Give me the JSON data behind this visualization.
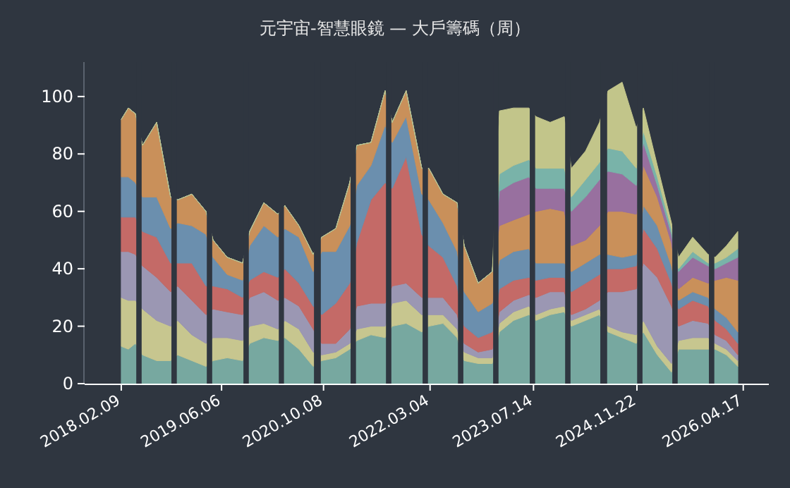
{
  "chart_data": {
    "type": "area",
    "stacked": true,
    "title": "元宇宙-智慧眼鏡 — 大戶籌碼（周）",
    "x": [
      "2018-02-09",
      "2018-03-15",
      "2018-04-18",
      "2018-05-22",
      "2018-07-29",
      "2018-10-04",
      "2018-11-07",
      "2019-01-14",
      "2019-03-23",
      "2019-04-26",
      "2019-07-03",
      "2019-09-15",
      "2019-10-19",
      "2019-12-26",
      "2020-03-03",
      "2020-04-05",
      "2020-06-12",
      "2020-08-19",
      "2020-09-29",
      "2020-12-06",
      "2021-02-11",
      "2021-03-17",
      "2021-05-24",
      "2021-07-31",
      "2021-09-03",
      "2021-11-09",
      "2022-01-23",
      "2022-02-26",
      "2022-05-05",
      "2022-07-12",
      "2022-08-15",
      "2022-10-21",
      "2022-12-28",
      "2023-01-31",
      "2023-04-09",
      "2023-06-22",
      "2023-07-26",
      "2023-10-02",
      "2023-12-09",
      "2024-01-12",
      "2024-03-20",
      "2024-05-26",
      "2024-07-06",
      "2024-09-12",
      "2024-11-19",
      "2024-12-23",
      "2025-02-28",
      "2025-05-07",
      "2025-06-10",
      "2025-08-17",
      "2025-10-30",
      "2025-12-03",
      "2026-01-26",
      "2026-03-22"
    ],
    "series": [
      {
        "color": "#77a8a0",
        "values": [
          13,
          12,
          14,
          10,
          8,
          8,
          10,
          8,
          6,
          8,
          9,
          8,
          14,
          16,
          15,
          16,
          12,
          6,
          8,
          9,
          12,
          15,
          17,
          16,
          20,
          21,
          18,
          20,
          21,
          16,
          8,
          7,
          7,
          18,
          22,
          24,
          22,
          24,
          25,
          20,
          22,
          24,
          18,
          16,
          14,
          18,
          10,
          4,
          12,
          12,
          12,
          12,
          10,
          6
        ]
      },
      {
        "color": "#c7c68f",
        "values": [
          17,
          17,
          15,
          16,
          14,
          12,
          12,
          9,
          8,
          8,
          7,
          7,
          6,
          5,
          4,
          6,
          7,
          5,
          2,
          2,
          2,
          4,
          3,
          4,
          8,
          8,
          6,
          4,
          3,
          3,
          3,
          2,
          2,
          3,
          3,
          3,
          2,
          2,
          2,
          2,
          2,
          2,
          2,
          2,
          3,
          4,
          3,
          3,
          3,
          4,
          4,
          2,
          2,
          2
        ]
      },
      {
        "color": "#9b97b3",
        "values": [
          16,
          17,
          16,
          15,
          15,
          12,
          12,
          12,
          10,
          10,
          9,
          9,
          10,
          11,
          10,
          8,
          8,
          8,
          4,
          3,
          5,
          8,
          8,
          8,
          6,
          6,
          6,
          6,
          6,
          5,
          3,
          2,
          3,
          4,
          4,
          4,
          6,
          6,
          5,
          2,
          2,
          3,
          12,
          14,
          16,
          20,
          24,
          20,
          5,
          6,
          5,
          3,
          3,
          2
        ]
      },
      {
        "color": "#c46a67",
        "values": [
          12,
          12,
          13,
          12,
          14,
          10,
          8,
          13,
          10,
          8,
          8,
          6,
          6,
          7,
          8,
          10,
          8,
          8,
          10,
          14,
          16,
          22,
          36,
          42,
          34,
          44,
          22,
          18,
          14,
          10,
          6,
          5,
          6,
          8,
          7,
          6,
          6,
          5,
          5,
          8,
          9,
          9,
          8,
          8,
          8,
          12,
          10,
          8,
          6,
          7,
          6,
          5,
          4,
          4
        ]
      },
      {
        "color": "#6b8fae",
        "values": [
          14,
          14,
          12,
          12,
          14,
          12,
          14,
          13,
          18,
          10,
          5,
          6,
          12,
          16,
          14,
          14,
          16,
          12,
          22,
          18,
          20,
          20,
          12,
          20,
          16,
          14,
          14,
          16,
          12,
          12,
          12,
          9,
          10,
          10,
          10,
          10,
          6,
          5,
          5,
          7,
          7,
          7,
          5,
          4,
          4,
          8,
          8,
          6,
          3,
          3,
          3,
          4,
          4,
          4
        ]
      },
      {
        "color": "#c9905a",
        "values": [
          20,
          24,
          24,
          18,
          26,
          11,
          8,
          11,
          8,
          6,
          6,
          6,
          5,
          8,
          8,
          8,
          4,
          6,
          5,
          8,
          15,
          14,
          8,
          12,
          7,
          9,
          9,
          11,
          10,
          17,
          16,
          10,
          11,
          12,
          11,
          12,
          18,
          19,
          18,
          9,
          8,
          10,
          15,
          16,
          14,
          14,
          10,
          8,
          4,
          5,
          5,
          10,
          14,
          18
        ]
      },
      {
        "color": "#98709f",
        "values": [
          0,
          0,
          0,
          0,
          0,
          0,
          0,
          0,
          0,
          0,
          0,
          0,
          0,
          0,
          0,
          0,
          0,
          0,
          0,
          0,
          0,
          0,
          0,
          0,
          0,
          0,
          0,
          0,
          0,
          0,
          0,
          0,
          0,
          12,
          13,
          13,
          8,
          7,
          8,
          12,
          15,
          16,
          14,
          13,
          10,
          8,
          4,
          3,
          6,
          7,
          6,
          4,
          5,
          8
        ]
      },
      {
        "color": "#79b3a9",
        "values": [
          0,
          0,
          0,
          0,
          0,
          0,
          0,
          0,
          0,
          0,
          0,
          0,
          0,
          0,
          0,
          0,
          0,
          0,
          0,
          0,
          0,
          0,
          0,
          0,
          0,
          0,
          0,
          0,
          0,
          0,
          0,
          0,
          0,
          6,
          6,
          6,
          7,
          7,
          7,
          5,
          6,
          6,
          8,
          8,
          6,
          4,
          3,
          2,
          1,
          2,
          1,
          2,
          2,
          3
        ]
      },
      {
        "color": "#c2c58a",
        "values": [
          0,
          0,
          0,
          0,
          0,
          0,
          0,
          0,
          0,
          0,
          0,
          0,
          0,
          0,
          0,
          0,
          0,
          0,
          0,
          0,
          0,
          0,
          0,
          0,
          0,
          0,
          0,
          0,
          0,
          0,
          0,
          0,
          0,
          22,
          20,
          18,
          18,
          16,
          18,
          10,
          10,
          14,
          20,
          24,
          14,
          8,
          4,
          2,
          4,
          5,
          3,
          2,
          4,
          6
        ]
      }
    ],
    "bands": [
      {
        "axis": "x",
        "from": "2018-04-18",
        "to": "2018-05-22",
        "color": "#2f3640"
      },
      {
        "axis": "x",
        "from": "2018-10-04",
        "to": "2018-11-07",
        "color": "#2f3640"
      },
      {
        "axis": "x",
        "from": "2019-03-23",
        "to": "2019-04-26",
        "color": "#2f3640"
      },
      {
        "axis": "x",
        "from": "2019-09-15",
        "to": "2019-10-19",
        "color": "#2f3640"
      },
      {
        "axis": "x",
        "from": "2020-03-03",
        "to": "2020-04-05",
        "color": "#2f3640"
      },
      {
        "axis": "x",
        "from": "2020-08-19",
        "to": "2020-09-29",
        "color": "#2f3640"
      },
      {
        "axis": "x",
        "from": "2021-02-11",
        "to": "2021-03-17",
        "color": "#2f3640"
      },
      {
        "axis": "x",
        "from": "2021-07-31",
        "to": "2021-09-03",
        "color": "#2f3640"
      },
      {
        "axis": "x",
        "from": "2022-01-23",
        "to": "2022-02-26",
        "color": "#2f3640"
      },
      {
        "axis": "x",
        "from": "2022-07-12",
        "to": "2022-08-15",
        "color": "#2f3640"
      },
      {
        "axis": "x",
        "from": "2022-12-28",
        "to": "2023-01-31",
        "color": "#2f3640"
      },
      {
        "axis": "x",
        "from": "2023-06-22",
        "to": "2023-07-26",
        "color": "#2f3640"
      },
      {
        "axis": "x",
        "from": "2023-12-09",
        "to": "2024-01-12",
        "color": "#2f3640"
      },
      {
        "axis": "x",
        "from": "2024-05-26",
        "to": "2024-07-06",
        "color": "#2f3640"
      },
      {
        "axis": "x",
        "from": "2024-11-19",
        "to": "2024-12-23",
        "color": "#2f3640"
      },
      {
        "axis": "x",
        "from": "2025-05-07",
        "to": "2025-06-10",
        "color": "#2f3640"
      },
      {
        "axis": "x",
        "from": "2025-10-30",
        "to": "2025-12-03",
        "color": "#2f3640"
      }
    ],
    "xlim": [
      "2017-08-17",
      "2026-08-18"
    ],
    "xticks": [
      {
        "value": "2018-02-09",
        "label": "2018.02.09"
      },
      {
        "value": "2019-06-06",
        "label": "2019.06.06"
      },
      {
        "value": "2020-10-08",
        "label": "2020.10.08"
      },
      {
        "value": "2022-03-04",
        "label": "2022.03.04"
      },
      {
        "value": "2023-07-14",
        "label": "2023.07.14"
      },
      {
        "value": "2024-11-22",
        "label": "2024.11.22"
      },
      {
        "value": "2026-04-17",
        "label": "2026.04.17"
      }
    ],
    "ylim": [
      0,
      112
    ],
    "yticks": [
      0,
      20,
      40,
      60,
      80,
      100
    ]
  }
}
